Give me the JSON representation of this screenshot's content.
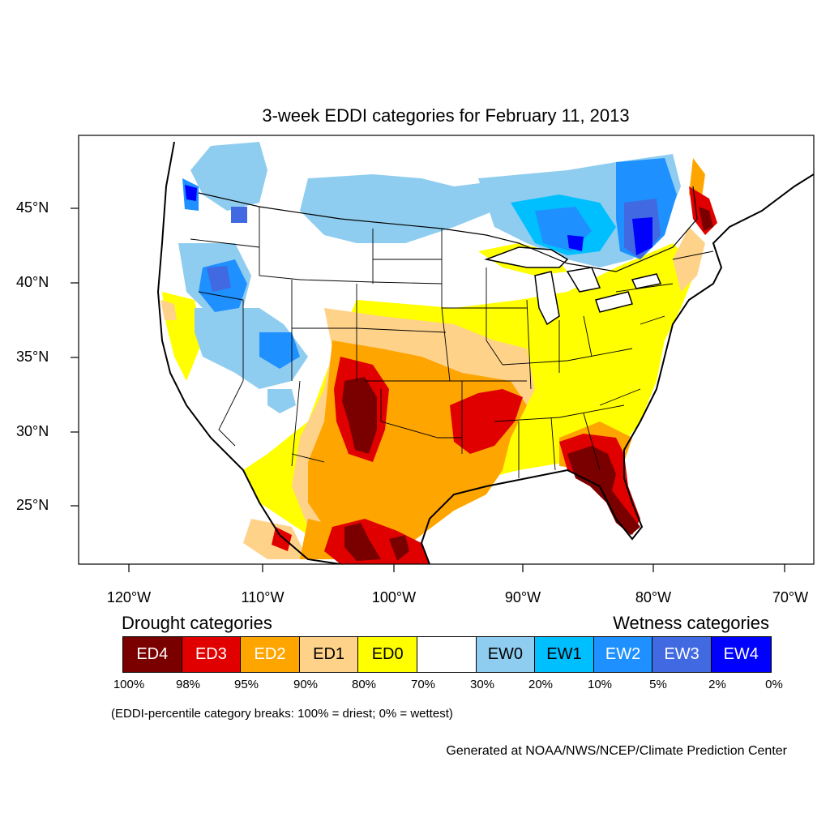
{
  "title": "3-week EDDI categories for February 11, 2013",
  "lat_labels": [
    {
      "id": "lat-45",
      "text": "45°N"
    },
    {
      "id": "lat-40",
      "text": "40°N"
    },
    {
      "id": "lat-35",
      "text": "35°N"
    },
    {
      "id": "lat-30",
      "text": "30°N"
    },
    {
      "id": "lat-25",
      "text": "25°N"
    }
  ],
  "lon_labels": [
    {
      "id": "lon-120",
      "text": "120°W"
    },
    {
      "id": "lon-110",
      "text": "110°W"
    },
    {
      "id": "lon-100",
      "text": "100°W"
    },
    {
      "id": "lon-90",
      "text": "90°W"
    },
    {
      "id": "lon-80",
      "text": "80°W"
    },
    {
      "id": "lon-70",
      "text": "70°W"
    }
  ],
  "legend": {
    "drought_title": "Drought categories",
    "wetness_title": "Wetness categories",
    "categories": [
      {
        "label": "ED4",
        "color": "#7a0000",
        "text_color": "#ffffff"
      },
      {
        "label": "ED3",
        "color": "#e00000",
        "text_color": "#ffffff"
      },
      {
        "label": "ED2",
        "color": "#ffa500",
        "text_color": "#ffffff"
      },
      {
        "label": "ED1",
        "color": "#ffd28a",
        "text_color": "#000000"
      },
      {
        "label": "ED0",
        "color": "#ffff00",
        "text_color": "#000000"
      },
      {
        "label": "",
        "color": "#ffffff",
        "text_color": "#000000"
      },
      {
        "label": "EW0",
        "color": "#8fcdf0",
        "text_color": "#000000"
      },
      {
        "label": "EW1",
        "color": "#00bfff",
        "text_color": "#000000"
      },
      {
        "label": "EW2",
        "color": "#1e90ff",
        "text_color": "#ffffff"
      },
      {
        "label": "EW3",
        "color": "#4169e1",
        "text_color": "#ffffff"
      },
      {
        "label": "EW4",
        "color": "#0000ff",
        "text_color": "#ffffff"
      }
    ],
    "percent_breaks": [
      "100%",
      "98%",
      "95%",
      "90%",
      "80%",
      "70%",
      "30%",
      "20%",
      "10%",
      "5%",
      "2%",
      "0%"
    ]
  },
  "note": "(EDDI-percentile category breaks: 100% = driest; 0% = wettest)",
  "credit": "Generated at NOAA/NWS/NCEP/Climate Prediction Center"
}
